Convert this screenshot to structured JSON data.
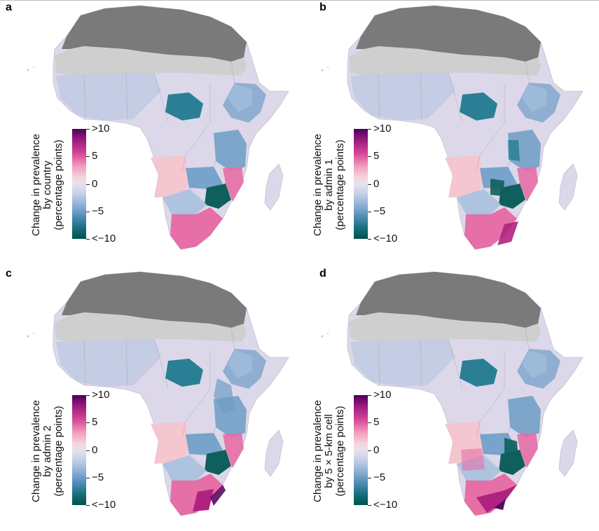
{
  "panels": [
    {
      "letter": "a",
      "title_lines": [
        "Change in prevalence",
        "by country",
        "(percentage points)"
      ]
    },
    {
      "letter": "b",
      "title_lines": [
        "Change in prevalence",
        "by admin 1",
        "(percentage points)"
      ]
    },
    {
      "letter": "c",
      "title_lines": [
        "Change in prevalence",
        "by admin 2",
        "(percentage points)"
      ]
    },
    {
      "letter": "d",
      "title_lines": [
        "Change in prevalence",
        "by 5 × 5-km cell",
        "(percentage points)"
      ]
    }
  ],
  "legend": {
    "ticks": [
      ">10",
      "5",
      "0",
      "−5",
      "<−10"
    ],
    "colors": {
      "high": "#4a005d",
      "mid": "#e6e2ee",
      "low": "#00524a"
    }
  },
  "map_colors": {
    "no_data_dark": "#7a7a7a",
    "no_data_light": "#cfcfcf",
    "neutral": "#dcd8ea",
    "light_blue": "#a9c1de",
    "mid_blue": "#6d9dc6",
    "teal": "#2a7f94",
    "dark_teal": "#0f5f5c",
    "light_pink": "#f4c6cf",
    "pink": "#e56fa6",
    "magenta": "#b02280",
    "purple": "#5a0a62"
  }
}
